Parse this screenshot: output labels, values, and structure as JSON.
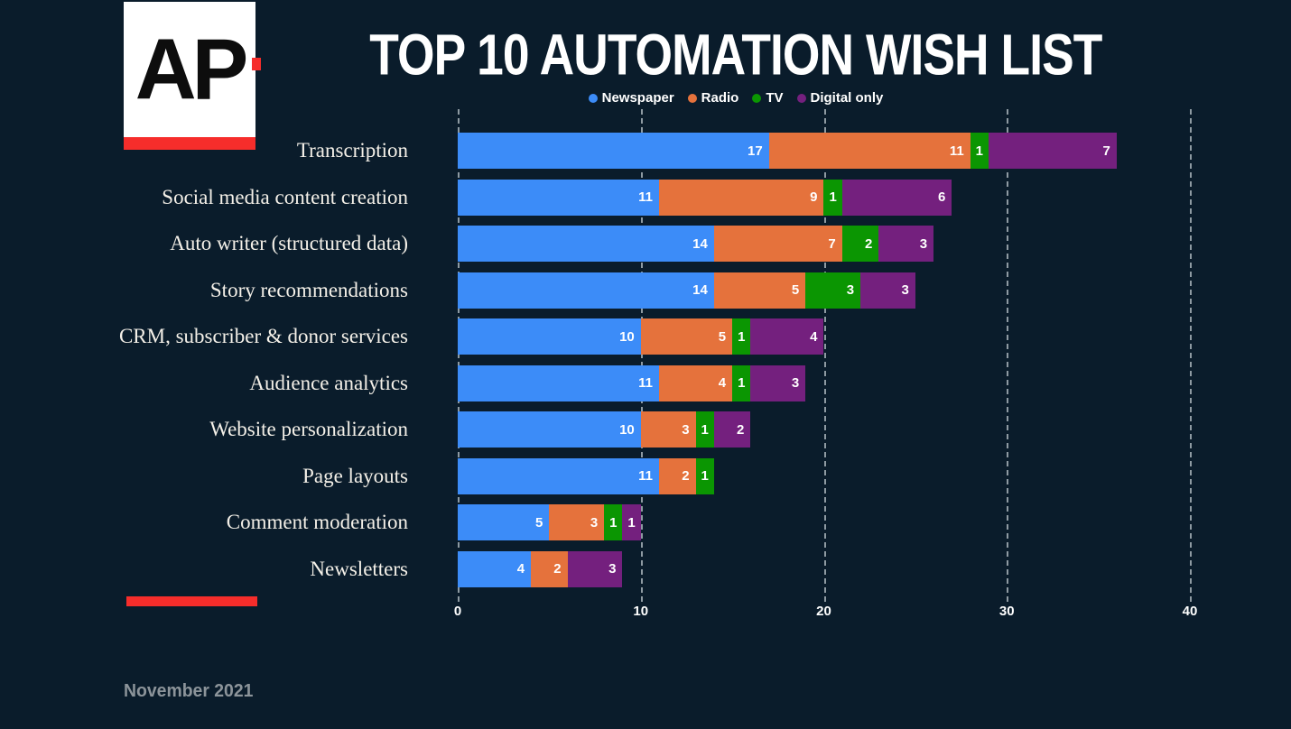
{
  "slide": {
    "background": "#0A1C2B",
    "logo": {
      "text": "AP",
      "red": "#F62D2B"
    },
    "footer": "November 2021"
  },
  "legend": [
    {
      "label": "Newspaper",
      "color": "#3C8CF8"
    },
    {
      "label": "Radio",
      "color": "#E5723C"
    },
    {
      "label": "TV",
      "color": "#0B9602"
    },
    {
      "label": "Digital only",
      "color": "#74207E"
    }
  ],
  "chart_data": {
    "type": "bar",
    "orientation": "horizontal",
    "stacked": true,
    "title": "TOP 10 AUTOMATION WISH LIST",
    "categories": [
      "Transcription",
      "Social media content creation",
      "Auto writer (structured data)",
      "Story recommendations",
      "CRM, subscriber & donor services",
      "Audience analytics",
      "Website personalization",
      "Page layouts",
      "Comment moderation",
      "Newsletters"
    ],
    "series": [
      {
        "name": "Newspaper",
        "color": "#3C8CF8",
        "values": [
          17,
          11,
          14,
          14,
          10,
          11,
          10,
          11,
          5,
          4
        ]
      },
      {
        "name": "Radio",
        "color": "#E5723C",
        "values": [
          11,
          9,
          7,
          5,
          5,
          4,
          3,
          2,
          3,
          2
        ]
      },
      {
        "name": "TV",
        "color": "#0B9602",
        "values": [
          1,
          1,
          2,
          3,
          1,
          1,
          1,
          1,
          1,
          0
        ]
      },
      {
        "name": "Digital only",
        "color": "#74207E",
        "values": [
          7,
          6,
          3,
          3,
          4,
          3,
          2,
          0,
          1,
          3
        ]
      }
    ],
    "totals": [
      36,
      27,
      26,
      25,
      20,
      19,
      16,
      14,
      10,
      9
    ],
    "xlabel": "",
    "ylabel": "",
    "xlim": [
      0,
      40
    ],
    "x_ticks": [
      0,
      10,
      20,
      30,
      40
    ],
    "grid": "dashed-vertical-gridlines",
    "legend_position": "top-center",
    "value_labels": "inside-end-white-bold"
  }
}
